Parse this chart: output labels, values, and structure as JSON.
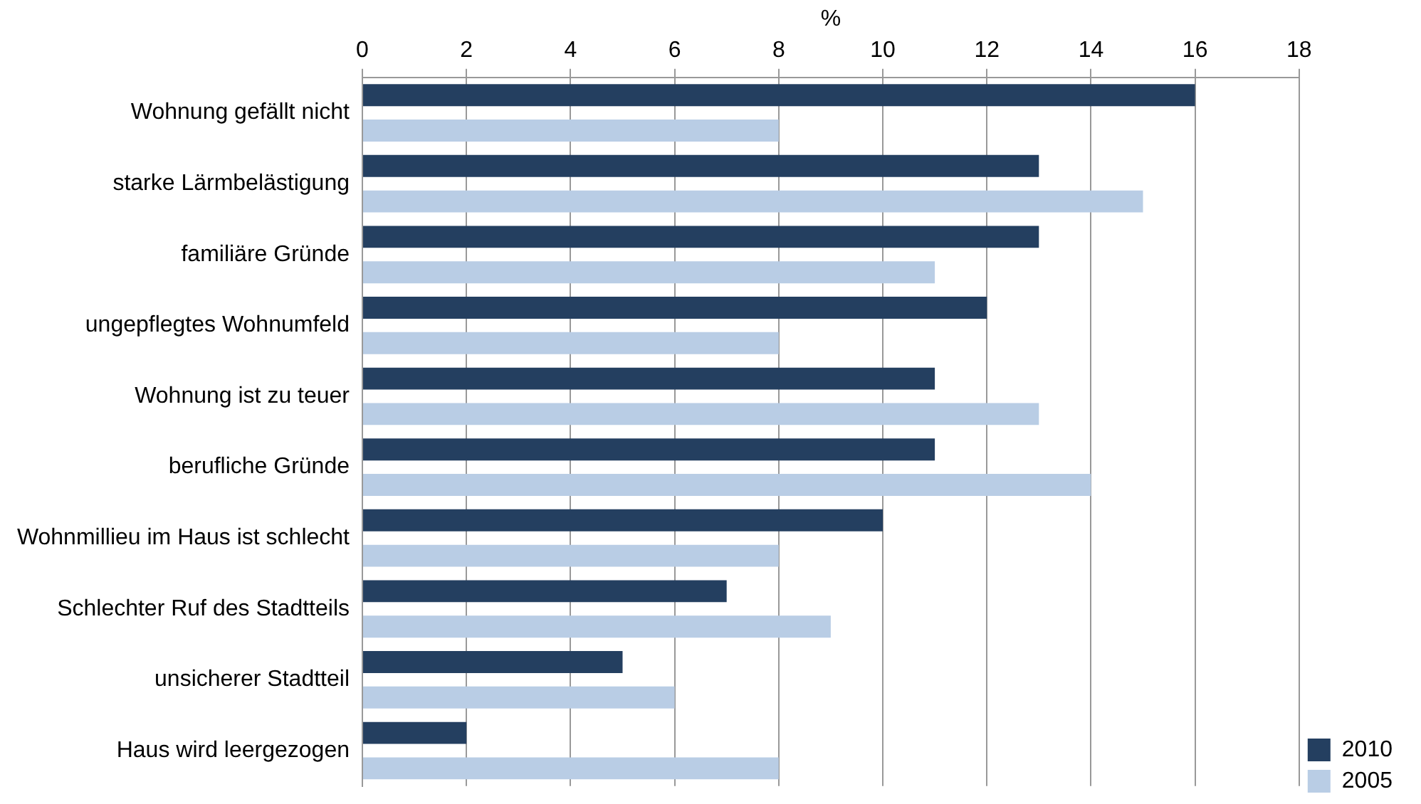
{
  "chart_data": {
    "type": "bar",
    "orientation": "horizontal",
    "xlabel": "%",
    "categories": [
      "Wohnung gefällt nicht",
      "starke Lärmbelästigung",
      "familiäre Gründe",
      "ungepflegtes Wohnumfeld",
      "Wohnung ist zu teuer",
      "berufliche Gründe",
      "Wohnmillieu im Haus ist schlecht",
      "Schlechter Ruf des Stadtteils",
      "unsicherer Stadtteil",
      "Haus wird leergezogen"
    ],
    "series": [
      {
        "name": "2010",
        "color": "#243f60",
        "values": [
          16,
          13,
          13,
          12,
          11,
          11,
          10,
          7,
          5,
          2
        ]
      },
      {
        "name": "2005",
        "color": "#b9cde5",
        "values": [
          8,
          15,
          11,
          8,
          13,
          14,
          8,
          9,
          6,
          8
        ]
      }
    ],
    "xlim": [
      0,
      18
    ],
    "xticks": [
      0,
      2,
      4,
      6,
      8,
      10,
      12,
      14,
      16,
      18
    ],
    "grid": "x",
    "legend": "bottom right"
  }
}
